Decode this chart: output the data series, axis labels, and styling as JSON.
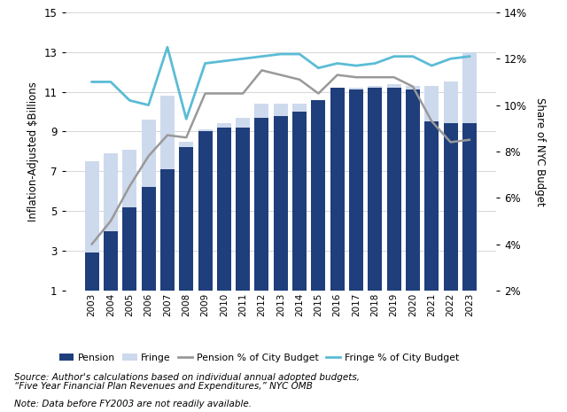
{
  "years": [
    2003,
    2004,
    2005,
    2006,
    2007,
    2008,
    2009,
    2010,
    2011,
    2012,
    2013,
    2014,
    2015,
    2016,
    2017,
    2018,
    2019,
    2020,
    2021,
    2022,
    2023
  ],
  "pension": [
    2.9,
    4.0,
    5.2,
    6.2,
    7.1,
    8.2,
    9.0,
    9.2,
    9.2,
    9.7,
    9.8,
    10.0,
    10.6,
    11.2,
    11.1,
    11.2,
    11.2,
    11.1,
    9.5,
    9.4,
    9.4
  ],
  "fringe": [
    7.5,
    7.9,
    8.1,
    9.6,
    10.8,
    8.5,
    9.1,
    9.4,
    9.7,
    10.4,
    10.4,
    10.4,
    10.5,
    11.1,
    11.2,
    11.3,
    11.4,
    11.3,
    11.3,
    11.5,
    13.0
  ],
  "pension_pct": [
    4.0,
    5.0,
    6.5,
    7.8,
    8.7,
    8.6,
    10.5,
    10.5,
    10.5,
    11.5,
    11.3,
    11.1,
    10.5,
    11.3,
    11.2,
    11.2,
    11.2,
    10.8,
    9.3,
    8.4,
    8.5
  ],
  "fringe_pct": [
    11.0,
    11.0,
    10.2,
    10.0,
    12.5,
    9.4,
    11.8,
    11.9,
    12.0,
    12.1,
    12.2,
    12.2,
    11.6,
    11.8,
    11.7,
    11.8,
    12.1,
    12.1,
    11.7,
    12.0,
    12.1
  ],
  "pension_bar_color": "#1f3e7c",
  "fringe_bar_color": "#cdd9ed",
  "pension_line_color": "#999999",
  "fringe_line_color": "#5bbcd6",
  "ylim_left": [
    1,
    15
  ],
  "ylim_right": [
    2,
    14
  ],
  "yticks_left": [
    1,
    3,
    5,
    7,
    9,
    11,
    13,
    15
  ],
  "yticks_right": [
    2,
    4,
    6,
    8,
    10,
    12,
    14
  ],
  "ylabel_left": "Inflation-Adjusted $Billions",
  "ylabel_right": "Share of NYC Budget",
  "source_line1": "Source: Author's calculations based on individual annual adopted budgets,",
  "source_line2": "“Five Year Financial Plan Revenues and Expenditures,” NYC OMB",
  "note_text": "Note: Data before FY2003 are not readily available.",
  "legend_labels": [
    "Pension",
    "Fringe",
    "Pension % of City Budget",
    "Fringe % of City Budget"
  ],
  "background_color": "#ffffff",
  "grid_color": "#d0d0d0"
}
